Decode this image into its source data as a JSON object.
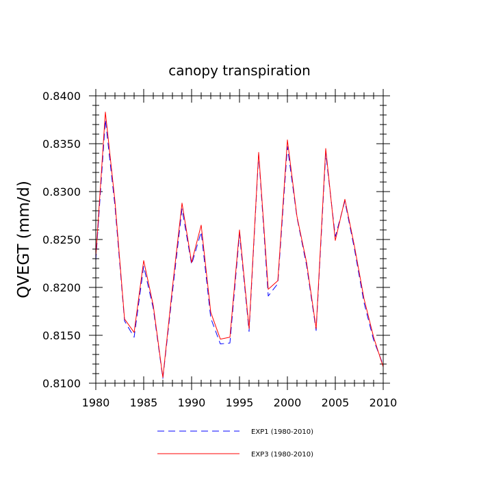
{
  "chart_data": {
    "type": "line",
    "title": "canopy transpiration",
    "xlabel": "",
    "ylabel": "QVEGT  (mm/d)",
    "xlim": [
      1980,
      2010
    ],
    "ylim": [
      0.81,
      0.84
    ],
    "xticks": [
      1980,
      1985,
      1990,
      1995,
      2000,
      2005,
      2010
    ],
    "yticks": [
      0.81,
      0.815,
      0.82,
      0.825,
      0.83,
      0.835,
      0.84
    ],
    "ytick_labels": [
      "0.8100",
      "0.8150",
      "0.8200",
      "0.8250",
      "0.8300",
      "0.8350",
      "0.8400"
    ],
    "grid": false,
    "legend_position": "bottom",
    "x": [
      1980,
      1981,
      1982,
      1983,
      1984,
      1985,
      1986,
      1987,
      1988,
      1989,
      1990,
      1991,
      1992,
      1993,
      1994,
      1995,
      1996,
      1997,
      1998,
      1999,
      2000,
      2001,
      2002,
      2003,
      2004,
      2005,
      2006,
      2007,
      2008,
      2009,
      2010
    ],
    "series": [
      {
        "name": "EXP1 (1980-2010)",
        "color": "#0000ff",
        "style": "dashed",
        "values": [
          0.8228,
          0.8375,
          0.8285,
          0.8165,
          0.8148,
          0.8222,
          0.8178,
          0.8105,
          0.8195,
          0.8282,
          0.8224,
          0.8258,
          0.8168,
          0.8141,
          0.8142,
          0.8256,
          0.8154,
          0.8339,
          0.8191,
          0.8204,
          0.8347,
          0.8273,
          0.8223,
          0.8155,
          0.834,
          0.8253,
          0.829,
          0.824,
          0.8184,
          0.8145,
          0.8119
        ]
      },
      {
        "name": "EXP3 (1980-2010)",
        "color": "#ff0000",
        "style": "solid",
        "values": [
          0.8232,
          0.8383,
          0.829,
          0.8167,
          0.8153,
          0.8228,
          0.8181,
          0.8106,
          0.82,
          0.8288,
          0.8226,
          0.8265,
          0.8174,
          0.8146,
          0.8148,
          0.826,
          0.8157,
          0.8341,
          0.8198,
          0.8207,
          0.8354,
          0.8274,
          0.8226,
          0.8157,
          0.8345,
          0.8249,
          0.8292,
          0.8243,
          0.8188,
          0.8148,
          0.8117
        ]
      }
    ]
  }
}
